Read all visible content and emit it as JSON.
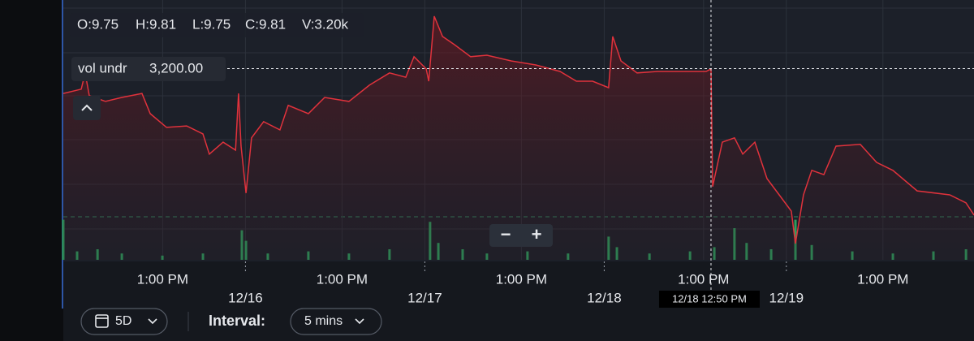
{
  "chart_data": {
    "type": "line",
    "ohlc": [
      "O:9.75",
      "H:9.81",
      "L:9.75",
      "C:9.81",
      "V:3.20k"
    ],
    "x": [
      0,
      0.65,
      0.79,
      0.94,
      1.53,
      2.12,
      2.85,
      3.15,
      3.74,
      4.47,
      5.06,
      5.29,
      5.79,
      6.24,
      6.35,
      6.44,
      6.62,
      6.82,
      7.26,
      7.85,
      8.15,
      8.88,
      9.47,
      10.35,
      11.09,
      11.82,
      12.41,
      12.71,
      13.15,
      13.24,
      13.44,
      13.74,
      14.18,
      14.76,
      15.35,
      16.24,
      17.12,
      18.0,
      18.59,
      19.18,
      19.76,
      19.91,
      20.21,
      20.79,
      21.53,
      22.41,
      23.29,
      23.47,
      23.53,
      23.88,
      24.32,
      24.62,
      25.06,
      25.5,
      25.94,
      26.38,
      26.53,
      26.82,
      27.12,
      27.56,
      28.0,
      28.88,
      29.47,
      30.06,
      30.94,
      32.12,
      32.71,
      33.0
    ],
    "series": [
      {
        "color": "#e0323c",
        "values": [
          9.741,
          9.753,
          9.798,
          9.735,
          9.719,
          9.73,
          9.741,
          9.685,
          9.647,
          9.651,
          9.629,
          9.573,
          9.606,
          9.584,
          9.741,
          9.595,
          9.465,
          9.618,
          9.663,
          9.64,
          9.708,
          9.685,
          9.73,
          9.719,
          9.764,
          9.798,
          9.786,
          9.843,
          9.809,
          9.775,
          9.955,
          9.899,
          9.876,
          9.843,
          9.847,
          9.831,
          9.82,
          9.802,
          9.775,
          9.775,
          9.757,
          9.899,
          9.831,
          9.798,
          9.802,
          9.802,
          9.802,
          9.809,
          9.483,
          9.606,
          9.618,
          9.573,
          9.606,
          9.505,
          9.46,
          9.415,
          9.325,
          9.46,
          9.528,
          9.516,
          9.595,
          9.6,
          9.55,
          9.528,
          9.471,
          9.46,
          9.438,
          9.404
        ]
      }
    ],
    "volume": {
      "color": "#2e9e5e",
      "x": [
        0,
        0.5,
        1.24,
        2.12,
        3.59,
        5.06,
        6.47,
        6.62,
        7.41,
        8.88,
        10.35,
        11.82,
        13.29,
        13.59,
        14.47,
        15.35,
        16.82,
        18.29,
        19.76,
        20.06,
        21.24,
        22.71,
        23.59,
        24.32,
        24.76,
        25.65,
        26.53,
        27.12,
        28.59,
        30.06,
        31.53,
        32.71
      ],
      "values": [
        19,
        4,
        5,
        3,
        2,
        3,
        14,
        9,
        3,
        4,
        3,
        5,
        18,
        8,
        5,
        3,
        4,
        3,
        11,
        6,
        3,
        4,
        6,
        15,
        8,
        5,
        19,
        7,
        4,
        3,
        4,
        5
      ]
    },
    "xlim": [
      0,
      33
    ],
    "ylim": [
      9.28,
      10.0
    ],
    "y2lim": [
      0,
      20
    ],
    "xticks": [
      {
        "value": 3.6,
        "label": "1:00 PM"
      },
      {
        "value": 6.6,
        "label": "12/16"
      },
      {
        "value": 10.1,
        "label": "1:00 PM"
      },
      {
        "value": 13.1,
        "label": "12/17"
      },
      {
        "value": 16.6,
        "label": "1:00 PM"
      },
      {
        "value": 19.6,
        "label": "12/18"
      },
      {
        "value": 23.2,
        "label": "1:00 PM"
      },
      {
        "value": 26.2,
        "label": "12/19"
      },
      {
        "value": 29.7,
        "label": "1:00 PM"
      }
    ],
    "grid": true,
    "crosshair": {
      "x": 23.47,
      "y": 9.81,
      "x_label": "12/18 12:50 PM",
      "y_name": "vol undr",
      "y_label": "3,200.00"
    }
  },
  "ui": {
    "zoom_out": "−",
    "zoom_in": "+",
    "range": "5D",
    "interval_label": "Interval:",
    "interval": "5 mins"
  }
}
